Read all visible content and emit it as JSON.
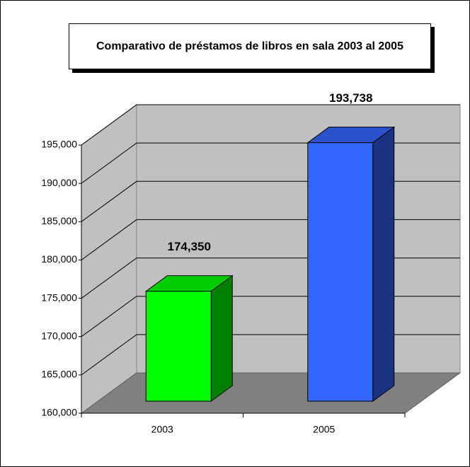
{
  "chart_data": {
    "type": "bar3d",
    "title": "Comparativo de préstamos de libros en sala 2003 al 2005",
    "categories": [
      "2003",
      "2005"
    ],
    "values": [
      174350,
      193738
    ],
    "value_labels": [
      "174,350",
      "193,738"
    ],
    "colors": [
      "#00ff00",
      "#3366ff"
    ],
    "ylim": [
      160000,
      195000
    ],
    "yticks": [
      {
        "value": 160000,
        "label": "160,000"
      },
      {
        "value": 165000,
        "label": "165,000"
      },
      {
        "value": 170000,
        "label": "170,000"
      },
      {
        "value": 175000,
        "label": "175,000"
      },
      {
        "value": 180000,
        "label": "180,000"
      },
      {
        "value": 185000,
        "label": "185,000"
      },
      {
        "value": 190000,
        "label": "190,000"
      },
      {
        "value": 195000,
        "label": "195,000"
      }
    ],
    "grid": true
  }
}
